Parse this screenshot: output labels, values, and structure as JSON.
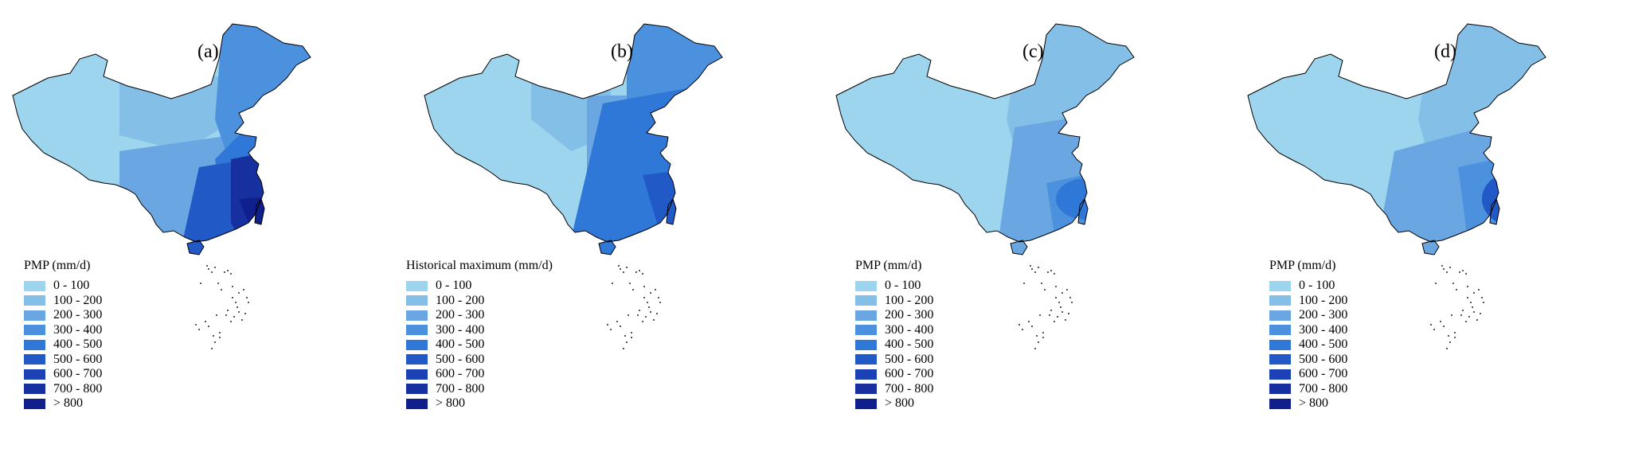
{
  "panels": [
    {
      "id": "a",
      "label": "(a)",
      "legend_title": "PMP (mm/d)",
      "style": "zones"
    },
    {
      "id": "b",
      "label": "(b)",
      "legend_title": "Historical maximum (mm/d)",
      "style": "smooth"
    },
    {
      "id": "c",
      "label": "(c)",
      "legend_title": "PMP (mm/d)",
      "style": "mottled"
    },
    {
      "id": "d",
      "label": "(d)",
      "legend_title": "PMP (mm/d)",
      "style": "speckled"
    }
  ],
  "legend_classes": [
    {
      "label": "0 - 100",
      "color": "#9dd5ee"
    },
    {
      "label": "100 - 200",
      "color": "#84bfe8"
    },
    {
      "label": "200 - 300",
      "color": "#6aa7e2"
    },
    {
      "label": "300 - 400",
      "color": "#4c91de"
    },
    {
      "label": "400 - 500",
      "color": "#2f78d8"
    },
    {
      "label": "500 - 600",
      "color": "#2159c7"
    },
    {
      "label": "600 - 700",
      "color": "#1b41b4"
    },
    {
      "label": "700 - 800",
      "color": "#16309f"
    },
    {
      "label": "> 800",
      "color": "#0f1f8c"
    }
  ]
}
